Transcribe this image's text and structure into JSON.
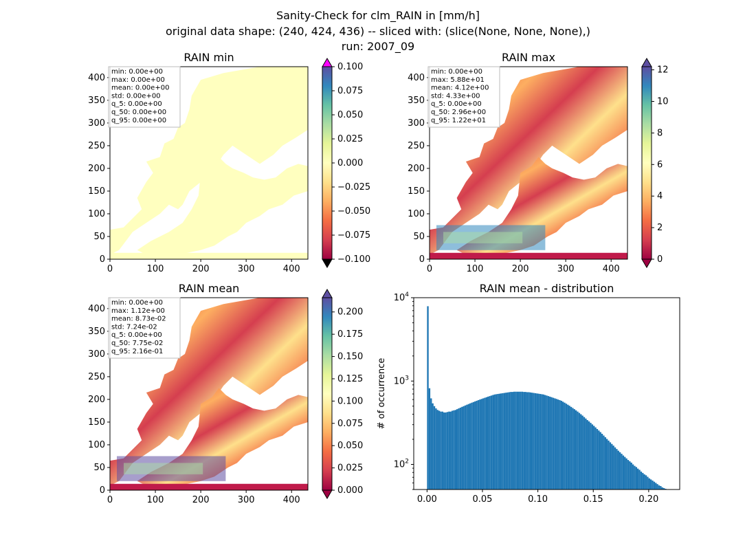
{
  "figure": {
    "title_lines": [
      "Sanity-Check for clm_RAIN in [mm/h]",
      "original data shape: (240, 424, 436) -- sliced with: (slice(None, None, None),)",
      "run: 2007_09"
    ]
  },
  "chart_data": [
    {
      "type": "heatmap",
      "title": "RAIN min",
      "x_ticks": [
        0,
        100,
        200,
        300,
        400
      ],
      "y_ticks": [
        0,
        50,
        100,
        150,
        200,
        250,
        300,
        350,
        400
      ],
      "xlim": [
        0,
        436
      ],
      "ylim": [
        0,
        424
      ],
      "colorbar": {
        "colormap": "Spectral",
        "range": [
          -0.1,
          0.1
        ],
        "ticks": [
          "0.100",
          "0.075",
          "0.050",
          "0.025",
          "0.000",
          "−0.025",
          "−0.050",
          "−0.075",
          "−0.100"
        ],
        "extend_top_color": "#ff00ff",
        "extend_bottom_color": "#000000"
      },
      "stats": [
        "min: 0.00e+00",
        "max: 0.00e+00",
        "mean: 0.00e+00",
        "std: 0.00e+00",
        "q_5: 0.00e+00",
        "q_50: 0.00e+00",
        "q_95: 0.00e+00"
      ]
    },
    {
      "type": "heatmap",
      "title": "RAIN max",
      "x_ticks": [
        0,
        100,
        200,
        300,
        400
      ],
      "y_ticks": [
        0,
        50,
        100,
        150,
        200,
        250,
        300,
        350,
        400
      ],
      "xlim": [
        0,
        436
      ],
      "ylim": [
        0,
        424
      ],
      "colorbar": {
        "colormap": "Spectral",
        "range": [
          0,
          12.2
        ],
        "ticks": [
          "12",
          "10",
          "8",
          "6",
          "4",
          "2",
          "0"
        ]
      },
      "stats": [
        "min: 0.00e+00",
        "max: 5.88e+01",
        "mean: 4.12e+00",
        "std: 4.33e+00",
        "q_5: 0.00e+00",
        "q_50: 2.96e+00",
        "q_95: 1.22e+01"
      ]
    },
    {
      "type": "heatmap",
      "title": "RAIN mean",
      "x_ticks": [
        0,
        100,
        200,
        300,
        400
      ],
      "y_ticks": [
        0,
        50,
        100,
        150,
        200,
        250,
        300,
        350,
        400
      ],
      "xlim": [
        0,
        436
      ],
      "ylim": [
        0,
        424
      ],
      "colorbar": {
        "colormap": "Spectral",
        "range": [
          0,
          0.216
        ],
        "ticks": [
          "0.200",
          "0.175",
          "0.150",
          "0.125",
          "0.100",
          "0.075",
          "0.050",
          "0.025",
          "0.000"
        ]
      },
      "stats": [
        "min: 0.00e+00",
        "max: 1.12e+00",
        "mean: 8.73e-02",
        "std: 7.24e-02",
        "q_5: 0.00e+00",
        "q_50: 7.75e-02",
        "q_95: 2.16e-01"
      ]
    },
    {
      "type": "bar",
      "title": "RAIN mean - distribution",
      "ylabel": "# of occurrence",
      "xlabel": "",
      "y_scale": "log",
      "xlim": [
        -0.012,
        0.228
      ],
      "ylim": [
        50,
        10000
      ],
      "x_tick_labels": [
        "0.00",
        "0.05",
        "0.10",
        "0.15",
        "0.20"
      ],
      "y_tick_labels": [
        "10^2",
        "10^3",
        "10^4"
      ],
      "bar_color": "#1f77b4",
      "series": [
        {
          "name": "",
          "bins": {
            "start": 0.0,
            "end": 0.216
          },
          "values": [
            7900,
            820,
            620,
            540,
            500,
            470,
            450,
            440,
            430,
            430,
            420,
            420,
            425,
            430,
            430,
            440,
            445,
            450,
            460,
            470,
            480,
            490,
            500,
            510,
            520,
            530,
            540,
            550,
            560,
            570,
            580,
            590,
            600,
            610,
            620,
            630,
            640,
            650,
            660,
            670,
            680,
            690,
            695,
            700,
            705,
            710,
            715,
            720,
            725,
            730,
            735,
            740,
            740,
            745,
            745,
            745,
            745,
            745,
            745,
            740,
            740,
            735,
            735,
            730,
            725,
            720,
            715,
            710,
            705,
            700,
            695,
            690,
            680,
            670,
            660,
            650,
            640,
            630,
            620,
            610,
            600,
            590,
            580,
            565,
            550,
            535,
            520,
            505,
            490,
            475,
            460,
            445,
            430,
            415,
            400,
            385,
            370,
            355,
            340,
            328,
            315,
            302,
            290,
            278,
            266,
            255,
            244,
            233,
            222,
            212,
            202,
            193,
            184,
            176,
            168,
            160,
            153,
            146,
            140,
            134,
            128,
            123,
            118,
            113,
            109,
            105,
            100,
            96,
            93,
            89,
            86,
            82,
            79,
            76,
            74,
            71,
            68,
            66,
            64,
            62,
            60,
            58,
            56,
            55,
            53,
            52,
            51
          ]
        }
      ]
    }
  ]
}
